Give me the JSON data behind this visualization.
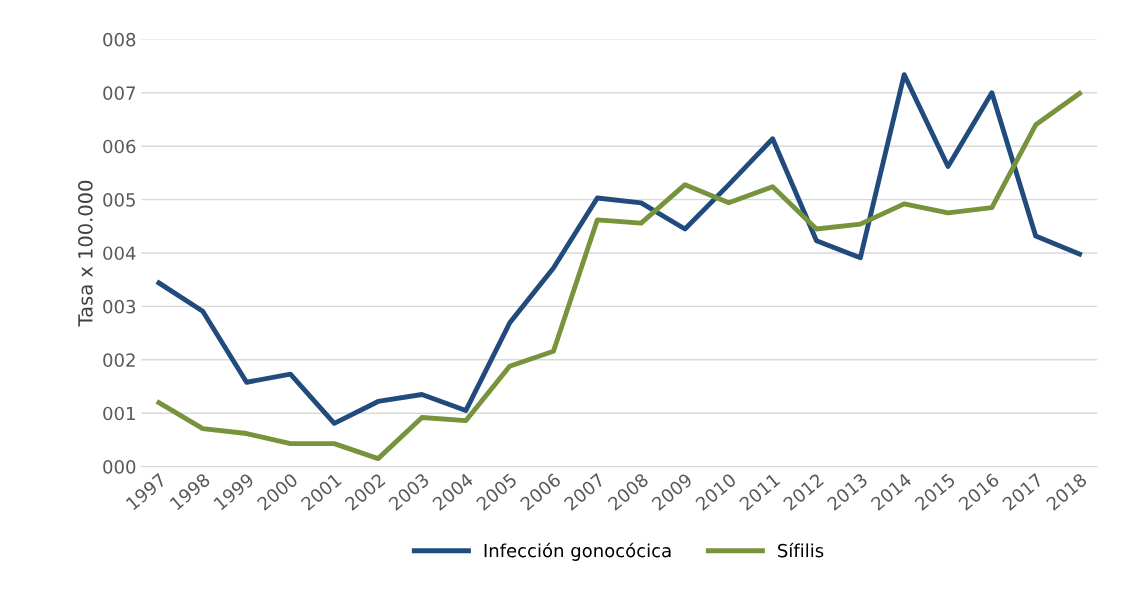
{
  "chart_data": {
    "type": "line",
    "categories": [
      "1997",
      "1998",
      "1999",
      "2000",
      "2001",
      "2002",
      "2003",
      "2004",
      "2005",
      "2006",
      "2007",
      "2008",
      "2009",
      "2010",
      "2011",
      "2012",
      "2013",
      "2014",
      "2015",
      "2016",
      "2017",
      "2018"
    ],
    "ylabel": "Tasa x 100.000",
    "series": [
      {
        "name": "Infección gonocócica",
        "color": "#224b7d",
        "values": [
          3.44,
          2.91,
          1.58,
          1.73,
          0.81,
          1.22,
          1.35,
          1.05,
          2.69,
          3.72,
          5.03,
          4.94,
          4.45,
          5.28,
          6.14,
          4.23,
          3.91,
          7.34,
          5.62,
          7.0,
          4.32,
          3.98
        ]
      },
      {
        "name": "Sífilis",
        "color": "#77933c",
        "values": [
          1.2,
          0.71,
          0.62,
          0.43,
          0.43,
          0.15,
          0.92,
          0.86,
          1.88,
          2.16,
          4.62,
          4.56,
          5.28,
          4.94,
          5.24,
          4.45,
          4.54,
          4.92,
          4.75,
          4.85,
          6.4,
          6.99
        ]
      }
    ],
    "ylim": [
      0,
      8
    ],
    "yticks": [
      {
        "value": 0,
        "label": "000"
      },
      {
        "value": 1,
        "label": "001"
      },
      {
        "value": 2,
        "label": "002"
      },
      {
        "value": 3,
        "label": "003"
      },
      {
        "value": 4,
        "label": "004"
      },
      {
        "value": 5,
        "label": "005"
      },
      {
        "value": 6,
        "label": "006"
      },
      {
        "value": 7,
        "label": "007"
      },
      {
        "value": 8,
        "label": "008"
      }
    ],
    "grid": "y",
    "legend": "bottom",
    "marker": "none",
    "line_style": "solid"
  }
}
